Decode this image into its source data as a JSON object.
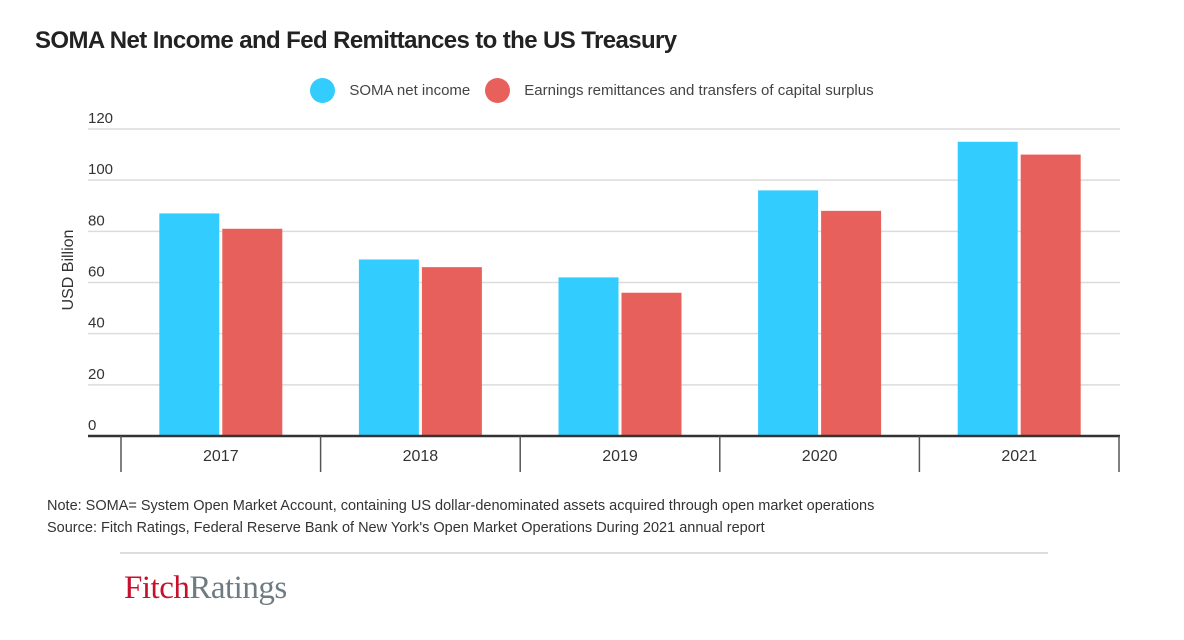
{
  "chart_data": {
    "type": "bar",
    "title": "SOMA Net Income and Fed Remittances to the US Treasury",
    "xlabel": "",
    "ylabel": "USD Billion",
    "ylim": [
      0,
      120
    ],
    "yticks": [
      0,
      20,
      40,
      60,
      80,
      100,
      120
    ],
    "grid": true,
    "legend_position": "top-center",
    "categories": [
      "2017",
      "2018",
      "2019",
      "2020",
      "2021"
    ],
    "series": [
      {
        "name": "SOMA net income",
        "color": "#33ccff",
        "values": [
          87,
          69,
          62,
          96,
          115
        ]
      },
      {
        "name": "Earnings remittances and transfers of capital surplus",
        "color": "#e8605b",
        "values": [
          81,
          66,
          56,
          88,
          110
        ]
      }
    ]
  },
  "footer": {
    "note": "Note: SOMA= System Open Market Account, containing US dollar-denominated assets acquired through open market operations",
    "source": "Source: Fitch Ratings, Federal Reserve Bank of New York's Open Market Operations During 2021 annual report"
  },
  "logo": {
    "part1": "Fitch",
    "part2": "Ratings"
  }
}
